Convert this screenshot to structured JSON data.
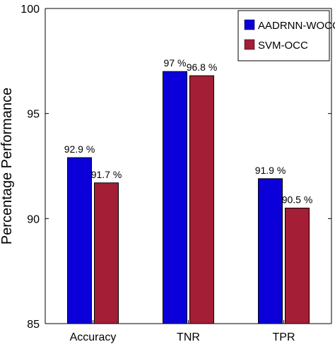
{
  "chart_data": {
    "type": "bar",
    "title": "",
    "xlabel": "",
    "ylabel": "Percentage Performance",
    "ylim": [
      85,
      100
    ],
    "yticks": [
      85,
      90,
      95,
      100
    ],
    "categories": [
      "Accuracy",
      "TNR",
      "TPR"
    ],
    "series": [
      {
        "name": "AADRNN-WOCC",
        "color": "#0b00d9",
        "values": [
          92.9,
          97,
          91.9
        ],
        "labels": [
          "92.9 %",
          "97 %",
          "91.9 %"
        ]
      },
      {
        "name": "SVM-OCC",
        "color": "#a41e35",
        "values": [
          91.7,
          96.8,
          90.5
        ],
        "labels": [
          "91.7 %",
          "96.8 %",
          "90.5 %"
        ]
      }
    ],
    "legend": "top-right",
    "grid": false
  }
}
